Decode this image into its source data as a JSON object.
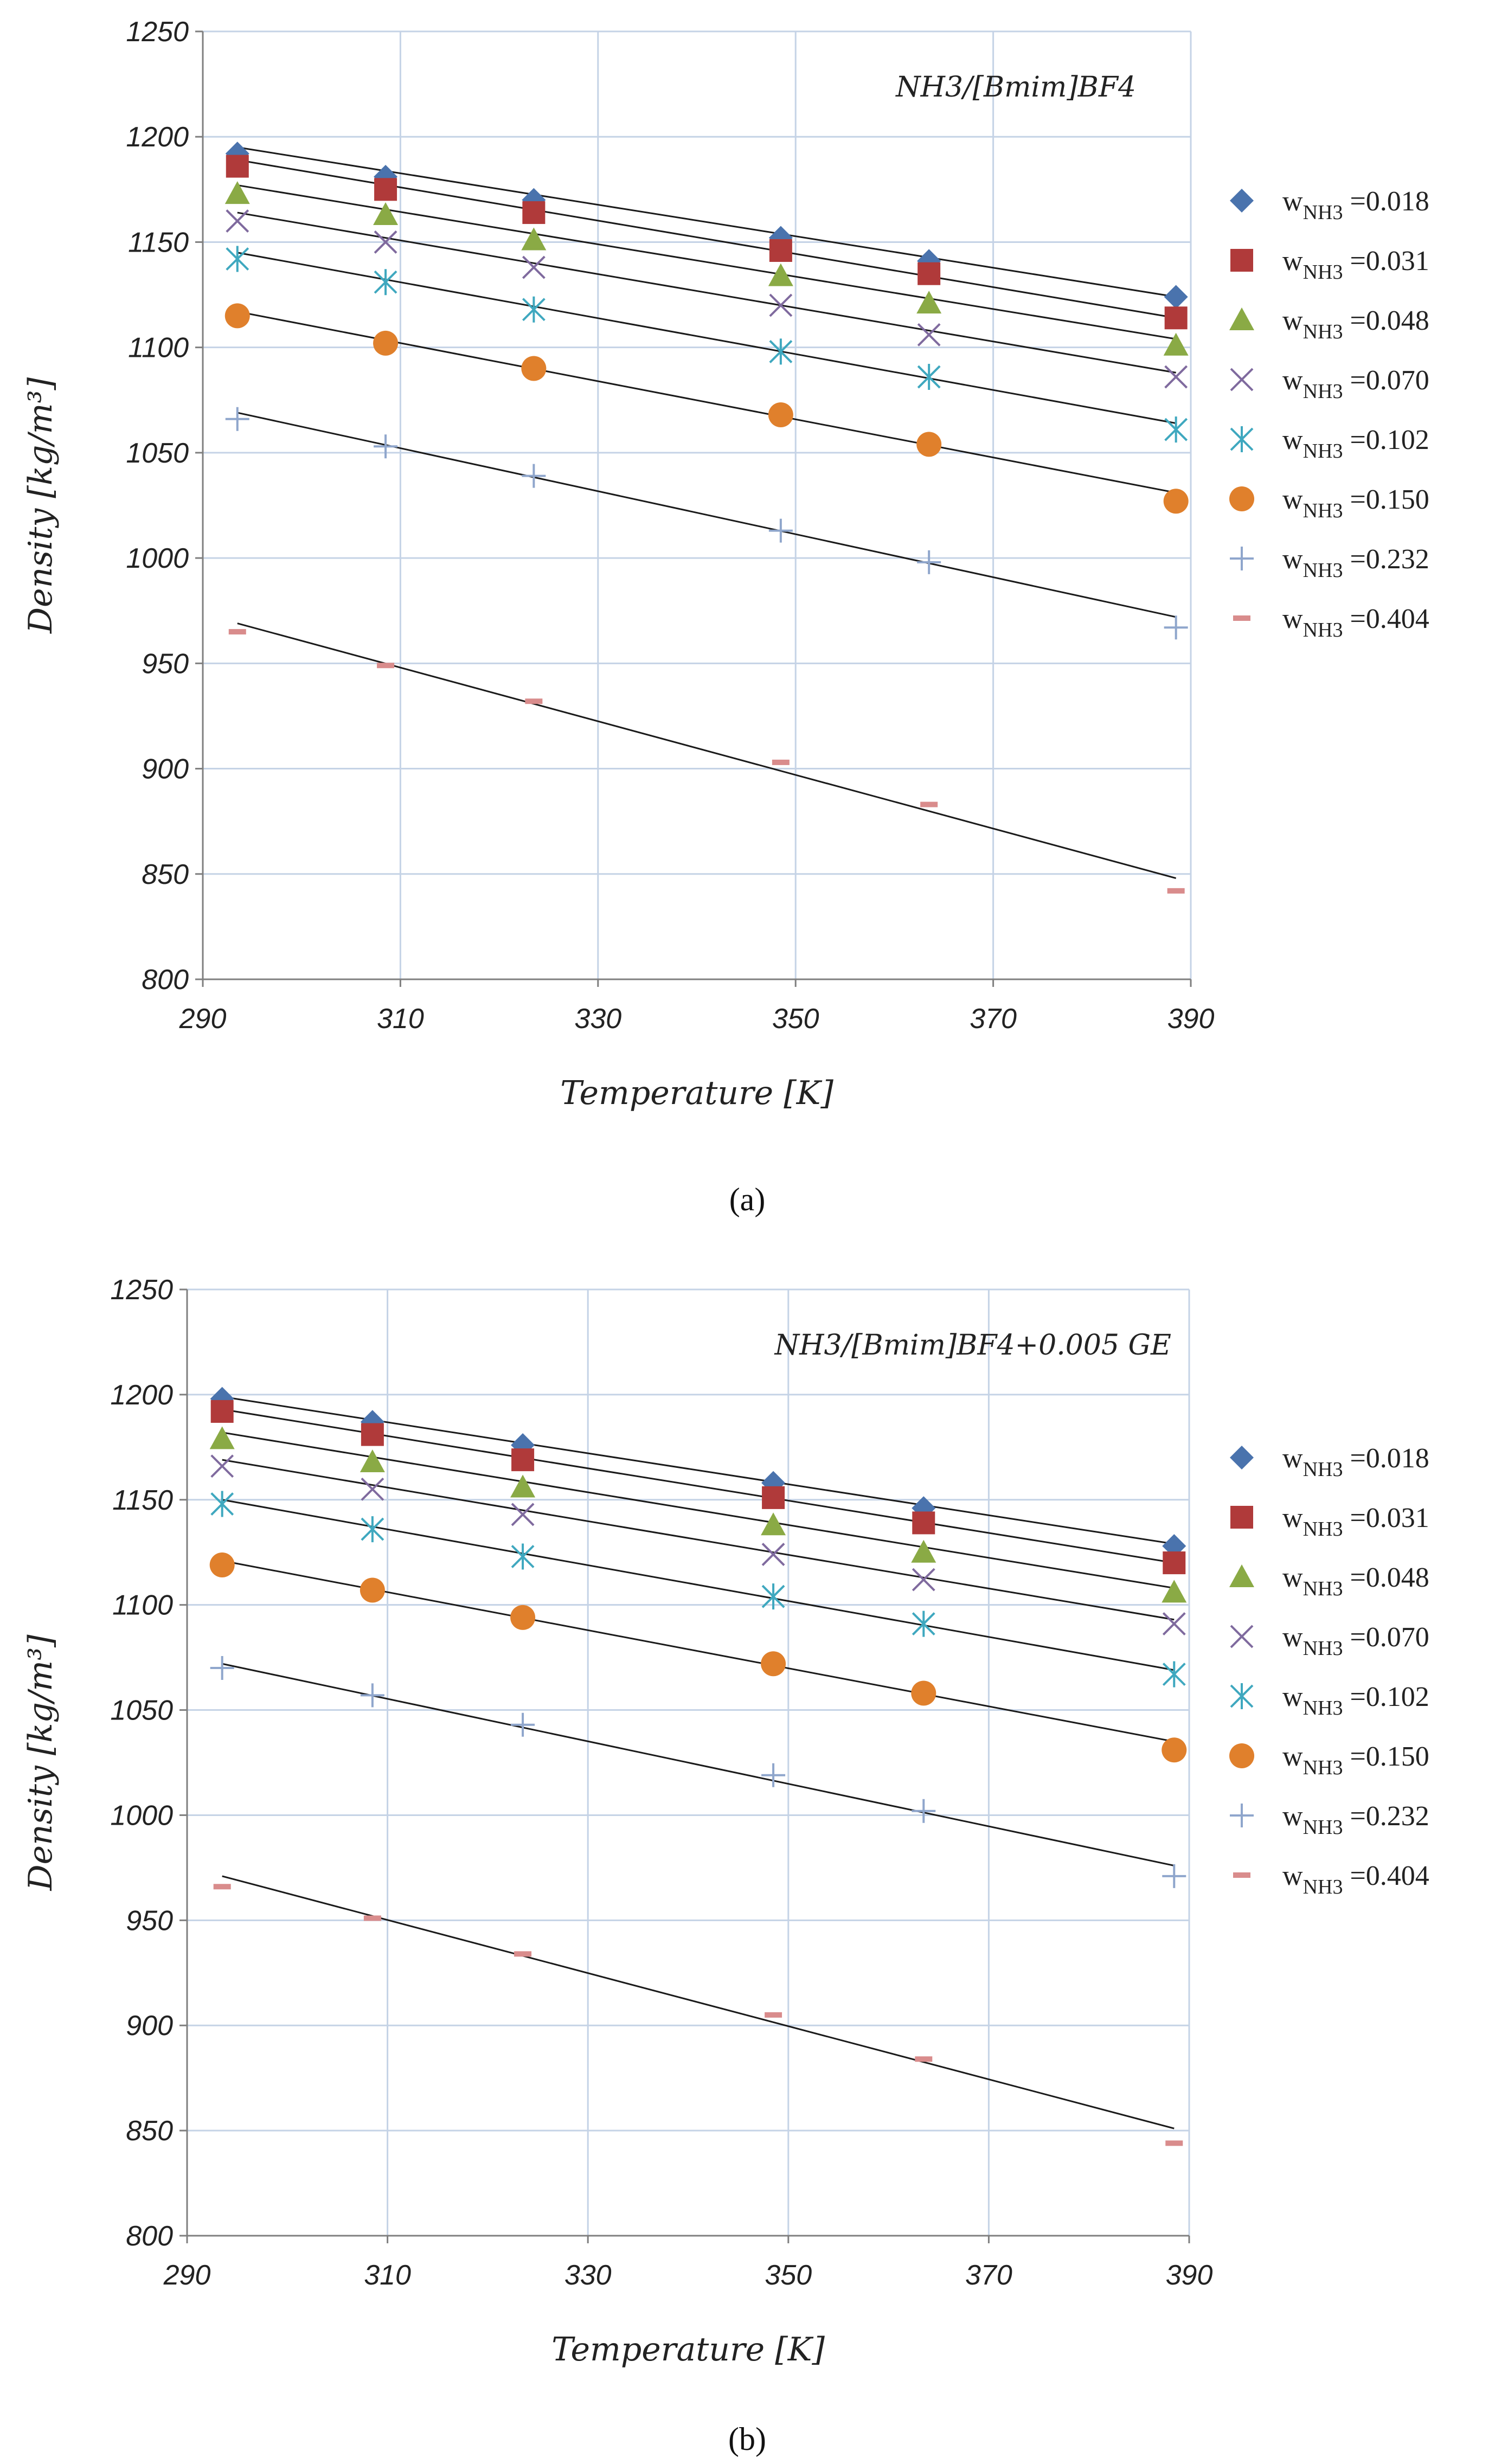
{
  "chart_data": [
    {
      "type": "scatter",
      "panel_label": "(a)",
      "annotation": "NH3/[Bmim]BF4",
      "xlabel": "Temperature [K]",
      "ylabel": "Density [kg/m³]",
      "xlim": [
        290,
        390
      ],
      "ylim": [
        800,
        1250
      ],
      "xticks": [
        "290",
        "310",
        "330",
        "350",
        "370",
        "390"
      ],
      "yticks": [
        "800",
        "850",
        "900",
        "950",
        "1000",
        "1050",
        "1100",
        "1150",
        "1200",
        "1250"
      ],
      "grid": true,
      "legend_position": "right",
      "x": [
        293.5,
        308.5,
        323.5,
        348.5,
        363.5,
        388.5
      ],
      "series": [
        {
          "name": "w_NH3 =0.018",
          "label_main": "w",
          "label_sub": "NH3",
          "label_value": " =0.018",
          "marker": "diamond",
          "color": "#4a73ad",
          "values": [
            1192,
            1181,
            1170,
            1152,
            1141,
            1124
          ],
          "fit": [
            1195,
            1124
          ]
        },
        {
          "name": "w_NH3 =0.031",
          "label_main": "w",
          "label_sub": "NH3",
          "label_value": " =0.031",
          "marker": "square",
          "color": "#b03a3a",
          "values": [
            1186,
            1175,
            1164,
            1146,
            1135,
            1114
          ],
          "fit": [
            1189,
            1114
          ]
        },
        {
          "name": "w_NH3 =0.048",
          "label_main": "w",
          "label_sub": "NH3",
          "label_value": " =0.048",
          "marker": "triangle",
          "color": "#8aaa45",
          "values": [
            1173,
            1163,
            1151,
            1134,
            1121,
            1101
          ],
          "fit": [
            1177,
            1104
          ]
        },
        {
          "name": "w_NH3 =0.070",
          "label_main": "w",
          "label_sub": "NH3",
          "label_value": " =0.070",
          "marker": "x",
          "color": "#7f6a9e",
          "values": [
            1160,
            1150,
            1138,
            1120,
            1106,
            1086
          ],
          "fit": [
            1164,
            1088
          ]
        },
        {
          "name": "w_NH3 =0.102",
          "label_main": "w",
          "label_sub": "NH3",
          "label_value": " =0.102",
          "marker": "asterisk",
          "color": "#3fa8bf",
          "values": [
            1142,
            1131,
            1118,
            1098,
            1086,
            1061
          ],
          "fit": [
            1145,
            1064
          ]
        },
        {
          "name": "w_NH3 =0.150",
          "label_main": "w",
          "label_sub": "NH3",
          "label_value": " =0.150",
          "marker": "circle",
          "color": "#e0802c",
          "values": [
            1115,
            1102,
            1090,
            1068,
            1054,
            1027
          ],
          "fit": [
            1117,
            1031
          ]
        },
        {
          "name": "w_NH3 =0.232",
          "label_main": "w",
          "label_sub": "NH3",
          "label_value": " =0.232",
          "marker": "plus",
          "color": "#8fa6cc",
          "values": [
            1066,
            1053,
            1039,
            1013,
            998,
            967
          ],
          "fit": [
            1069,
            972
          ]
        },
        {
          "name": "w_NH3 =0.404",
          "label_main": "w",
          "label_sub": "NH3",
          "label_value": " =0.404",
          "marker": "dash",
          "color": "#d98c8c",
          "values": [
            965,
            949,
            932,
            903,
            883,
            842
          ],
          "fit": [
            969,
            848
          ]
        }
      ]
    },
    {
      "type": "scatter",
      "panel_label": "(b)",
      "annotation": "NH3/[Bmim]BF4+0.005 GE",
      "xlabel": "Temperature [K]",
      "ylabel": "Density [kg/m³]",
      "xlim": [
        290,
        390
      ],
      "ylim": [
        800,
        1250
      ],
      "xticks": [
        "290",
        "310",
        "330",
        "350",
        "370",
        "390"
      ],
      "yticks": [
        "800",
        "850",
        "900",
        "950",
        "1000",
        "1050",
        "1100",
        "1150",
        "1200",
        "1250"
      ],
      "grid": true,
      "legend_position": "right",
      "x": [
        293.5,
        308.5,
        323.5,
        348.5,
        363.5,
        388.5
      ],
      "series": [
        {
          "name": "w_NH3 =0.018",
          "label_main": "w",
          "label_sub": "NH3",
          "label_value": " =0.018",
          "marker": "diamond",
          "color": "#4a73ad",
          "values": [
            1198,
            1187,
            1176,
            1158,
            1146,
            1128
          ],
          "fit": [
            1199,
            1129
          ]
        },
        {
          "name": "w_NH3 =0.031",
          "label_main": "w",
          "label_sub": "NH3",
          "label_value": " =0.031",
          "marker": "square",
          "color": "#b03a3a",
          "values": [
            1192,
            1181,
            1169,
            1151,
            1139,
            1120
          ],
          "fit": [
            1193,
            1120
          ]
        },
        {
          "name": "w_NH3 =0.048",
          "label_main": "w",
          "label_sub": "NH3",
          "label_value": " =0.048",
          "marker": "triangle",
          "color": "#8aaa45",
          "values": [
            1179,
            1168,
            1156,
            1138,
            1125,
            1106
          ],
          "fit": [
            1182,
            1108
          ]
        },
        {
          "name": "w_NH3 =0.070",
          "label_main": "w",
          "label_sub": "NH3",
          "label_value": " =0.070",
          "marker": "x",
          "color": "#7f6a9e",
          "values": [
            1166,
            1155,
            1143,
            1124,
            1112,
            1091
          ],
          "fit": [
            1169,
            1093
          ]
        },
        {
          "name": "w_NH3 =0.102",
          "label_main": "w",
          "label_sub": "NH3",
          "label_value": " =0.102",
          "marker": "asterisk",
          "color": "#3fa8bf",
          "values": [
            1148,
            1136,
            1123,
            1104,
            1091,
            1067
          ],
          "fit": [
            1150,
            1069
          ]
        },
        {
          "name": "w_NH3 =0.150",
          "label_main": "w",
          "label_sub": "NH3",
          "label_value": " =0.150",
          "marker": "circle",
          "color": "#e0802c",
          "values": [
            1119,
            1107,
            1094,
            1072,
            1058,
            1031
          ],
          "fit": [
            1121,
            1035
          ]
        },
        {
          "name": "w_NH3 =0.232",
          "label_main": "w",
          "label_sub": "NH3",
          "label_value": " =0.232",
          "marker": "plus",
          "color": "#8fa6cc",
          "values": [
            1070,
            1057,
            1043,
            1019,
            1002,
            971
          ],
          "fit": [
            1072,
            976
          ]
        },
        {
          "name": "w_NH3 =0.404",
          "label_main": "w",
          "label_sub": "NH3",
          "label_value": " =0.404",
          "marker": "dash",
          "color": "#d98c8c",
          "values": [
            966,
            951,
            934,
            905,
            884,
            844
          ],
          "fit": [
            971,
            851
          ]
        }
      ]
    }
  ]
}
